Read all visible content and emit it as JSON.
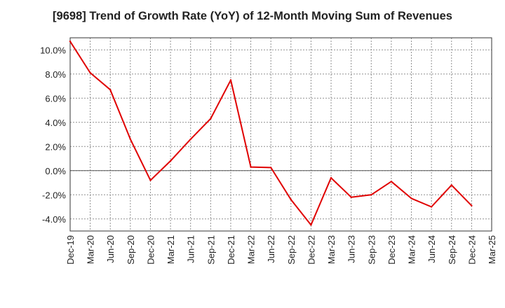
{
  "chart_data": {
    "type": "line",
    "title": "[9698]  Trend of Growth Rate (YoY) of 12-Month Moving Sum of Revenues",
    "xlabel": "",
    "ylabel": "",
    "x_ticks": [
      "Dec-19",
      "Mar-20",
      "Jun-20",
      "Sep-20",
      "Dec-20",
      "Mar-21",
      "Jun-21",
      "Sep-21",
      "Dec-21",
      "Mar-22",
      "Jun-22",
      "Sep-22",
      "Dec-22",
      "Mar-23",
      "Jun-23",
      "Sep-23",
      "Dec-23",
      "Mar-24",
      "Jun-24",
      "Sep-24",
      "Dec-24",
      "Mar-25"
    ],
    "y_ticks": [
      "10.0%",
      "8.0%",
      "6.0%",
      "4.0%",
      "2.0%",
      "0.0%",
      "-2.0%",
      "-4.0%"
    ],
    "y_tick_values": [
      10,
      8,
      6,
      4,
      2,
      0,
      -2,
      -4
    ],
    "ylim": [
      -5,
      11
    ],
    "grid": true,
    "series": [
      {
        "color": "#e00000",
        "x": [
          "Dec-19",
          "Mar-20",
          "Jun-20",
          "Sep-20",
          "Dec-20",
          "Mar-21",
          "Jun-21",
          "Sep-21",
          "Dec-21",
          "Mar-22",
          "Jun-22",
          "Sep-22",
          "Dec-22",
          "Mar-23",
          "Jun-23",
          "Sep-23",
          "Dec-23",
          "Mar-24",
          "Jun-24",
          "Sep-24",
          "Dec-24"
        ],
        "values": [
          10.7,
          8.1,
          6.7,
          2.6,
          -0.8,
          0.8,
          2.6,
          4.3,
          7.5,
          0.3,
          0.25,
          -2.4,
          -4.5,
          -0.6,
          -2.2,
          -2.0,
          -0.9,
          -2.3,
          -3.0,
          -1.2,
          -2.9
        ]
      }
    ]
  }
}
